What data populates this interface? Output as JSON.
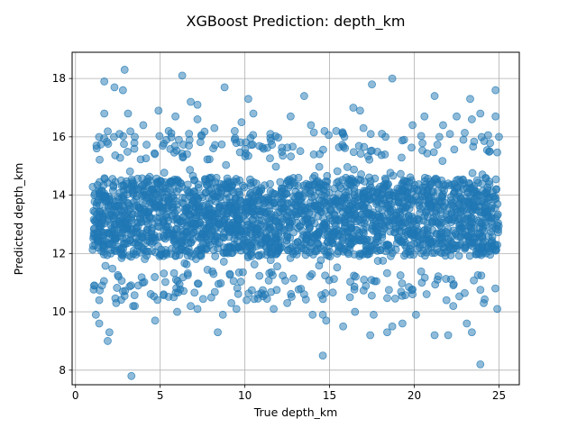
{
  "chart_data": {
    "type": "scatter",
    "title": "XGBoost Prediction: depth_km",
    "xlabel": "True depth_km",
    "ylabel": "Predicted depth_km",
    "xlim": [
      -0.2,
      26.2
    ],
    "ylim": [
      7.5,
      18.9
    ],
    "xticks": [
      0,
      5,
      10,
      15,
      20,
      25
    ],
    "yticks": [
      8,
      10,
      12,
      14,
      16,
      18
    ],
    "grid": true,
    "marker_color": "#1f77b4",
    "marker_alpha": 0.5,
    "dense_region": {
      "x_range": [
        1.0,
        25.0
      ],
      "y_core": [
        11.9,
        14.6
      ],
      "y_band": [
        11.2,
        15.3
      ]
    },
    "points": [
      [
        1.7,
        17.9
      ],
      [
        2.3,
        17.7
      ],
      [
        2.9,
        18.3
      ],
      [
        2.8,
        17.6
      ],
      [
        6.3,
        18.1
      ],
      [
        8.8,
        17.7
      ],
      [
        10.2,
        17.3
      ],
      [
        13.5,
        17.4
      ],
      [
        17.5,
        17.8
      ],
      [
        18.7,
        18.0
      ],
      [
        21.2,
        17.4
      ],
      [
        23.3,
        17.3
      ],
      [
        24.8,
        17.6
      ],
      [
        6.8,
        17.2
      ],
      [
        7.2,
        17.1
      ],
      [
        1.7,
        16.8
      ],
      [
        3.1,
        16.8
      ],
      [
        4.9,
        16.9
      ],
      [
        5.9,
        16.7
      ],
      [
        7.2,
        16.6
      ],
      [
        9.8,
        16.5
      ],
      [
        10.5,
        16.8
      ],
      [
        12.7,
        16.7
      ],
      [
        16.4,
        17.0
      ],
      [
        16.8,
        16.9
      ],
      [
        19.9,
        16.4
      ],
      [
        20.6,
        16.7
      ],
      [
        22.5,
        16.7
      ],
      [
        23.9,
        16.8
      ],
      [
        24.8,
        16.7
      ],
      [
        2.6,
        16.1
      ],
      [
        4.0,
        16.4
      ],
      [
        5.5,
        16.2
      ],
      [
        8.2,
        16.3
      ],
      [
        11.5,
        16.1
      ],
      [
        14.7,
        16.2
      ],
      [
        17.0,
        16.3
      ],
      [
        18.3,
        16.0
      ],
      [
        21.7,
        16.4
      ],
      [
        23.4,
        16.6
      ],
      [
        3.5,
        16.0
      ],
      [
        6.1,
        15.9
      ],
      [
        9.4,
        16.2
      ],
      [
        13.9,
        16.4
      ],
      [
        15.8,
        16.1
      ],
      [
        19.4,
        15.9
      ],
      [
        22.9,
        15.9
      ],
      [
        25.0,
        16.0
      ],
      [
        1.1,
        10.9
      ],
      [
        1.4,
        10.4
      ],
      [
        1.2,
        9.9
      ],
      [
        1.4,
        9.6
      ],
      [
        1.9,
        9.0
      ],
      [
        2.0,
        9.3
      ],
      [
        2.4,
        10.3
      ],
      [
        3.4,
        10.2
      ],
      [
        3.5,
        10.2
      ],
      [
        3.7,
        10.9
      ],
      [
        4.7,
        9.7
      ],
      [
        5.2,
        10.6
      ],
      [
        6.0,
        10.0
      ],
      [
        6.8,
        10.2
      ],
      [
        7.2,
        10.1
      ],
      [
        8.4,
        9.3
      ],
      [
        8.7,
        9.9
      ],
      [
        9.2,
        10.3
      ],
      [
        9.5,
        10.1
      ],
      [
        10.1,
        10.4
      ],
      [
        11.7,
        10.1
      ],
      [
        12.5,
        10.3
      ],
      [
        13.5,
        10.6
      ],
      [
        14.0,
        9.9
      ],
      [
        14.6,
        9.9
      ],
      [
        14.6,
        8.5
      ],
      [
        14.8,
        9.7
      ],
      [
        15.8,
        9.5
      ],
      [
        16.5,
        10.0
      ],
      [
        17.4,
        9.2
      ],
      [
        17.6,
        9.9
      ],
      [
        18.4,
        9.3
      ],
      [
        18.7,
        9.5
      ],
      [
        19.3,
        9.6
      ],
      [
        20.1,
        9.9
      ],
      [
        21.2,
        9.2
      ],
      [
        22.0,
        9.2
      ],
      [
        22.3,
        10.2
      ],
      [
        23.1,
        9.6
      ],
      [
        23.4,
        9.3
      ],
      [
        23.9,
        8.2
      ],
      [
        24.1,
        10.3
      ],
      [
        24.9,
        10.1
      ],
      [
        3.3,
        7.8
      ],
      [
        2.8,
        10.7
      ],
      [
        5.8,
        10.5
      ],
      [
        10.8,
        10.6
      ],
      [
        16.2,
        10.5
      ],
      [
        19.9,
        10.6
      ],
      [
        21.9,
        10.4
      ]
    ]
  }
}
